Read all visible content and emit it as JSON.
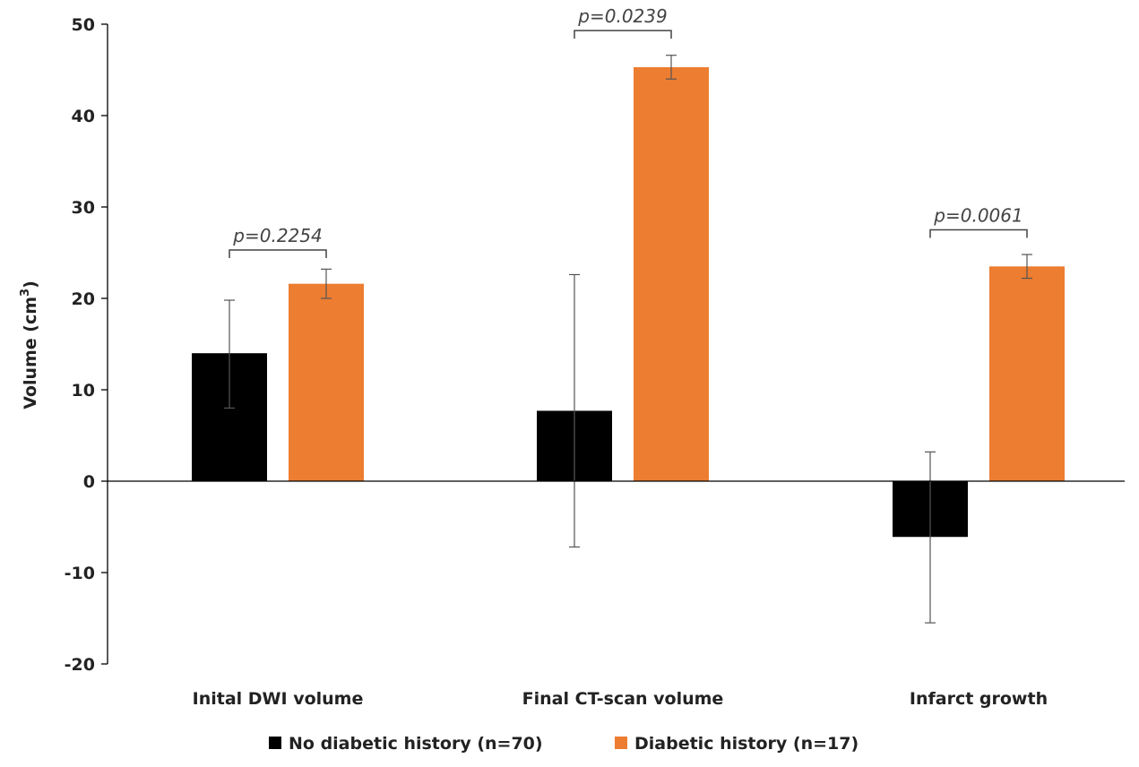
{
  "chart_data": {
    "type": "bar",
    "categories": [
      "Inital DWI volume",
      "Final CT-scan volume",
      "Infarct growth"
    ],
    "series": [
      {
        "name": "No diabetic history (n=70)",
        "color": "#000000",
        "values": [
          14.0,
          7.7,
          -6.1
        ],
        "error": [
          [
            8.0,
            19.8
          ],
          [
            -7.2,
            22.6
          ],
          [
            -15.5,
            3.2
          ]
        ]
      },
      {
        "name": "Diabetic history (n=17)",
        "color": "#ed7d31",
        "values": [
          21.6,
          45.3,
          23.5
        ],
        "error": [
          [
            20.0,
            23.2
          ],
          [
            44.0,
            46.6
          ],
          [
            22.2,
            24.8
          ]
        ]
      }
    ],
    "annotations": [
      {
        "category_index": 0,
        "text": "p=0.2254",
        "bracket_value": 25.3
      },
      {
        "category_index": 1,
        "text": "p=0.0239",
        "bracket_value": 49.3
      },
      {
        "category_index": 2,
        "text": "p=0.0061",
        "bracket_value": 27.5
      }
    ],
    "title": "",
    "xlabel": "",
    "ylabel_main": "Volume (cm",
    "ylabel_sup": "3",
    "ylabel_close": ")",
    "ylim": [
      -20,
      50
    ],
    "yticks": [
      -20,
      -10,
      0,
      10,
      20,
      30,
      40,
      50
    ],
    "grid": false,
    "legend_position": "bottom"
  }
}
